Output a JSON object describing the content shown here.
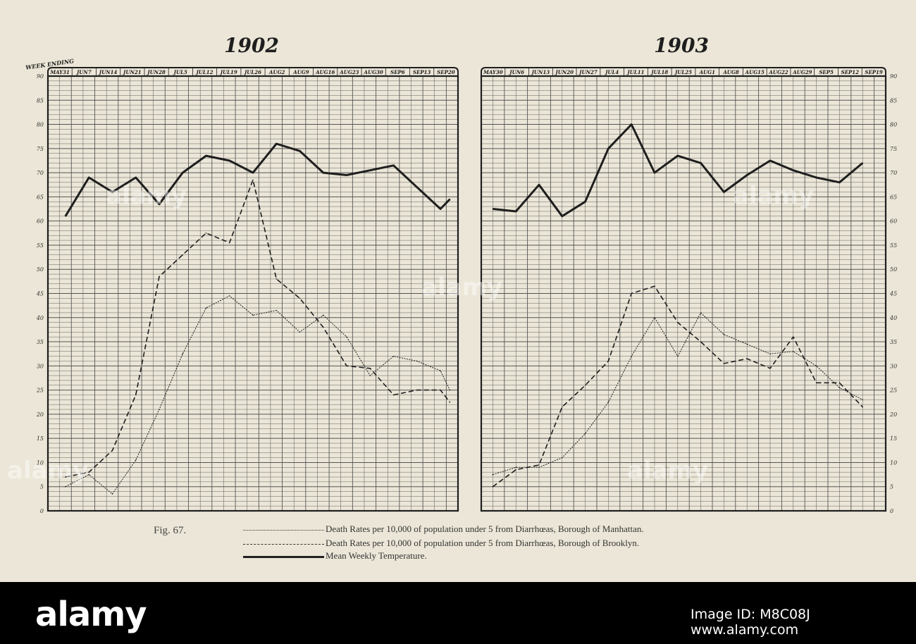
{
  "figure_label": "Fig. 67.",
  "week_label": "WEEK ENDING",
  "legend": [
    {
      "text": "Death Rates per 10,000 of population under 5 from Diarrhœas, Borough of Manhattan.",
      "style": "dotted"
    },
    {
      "text": "Death Rates per 10,000 of population under 5 from Diarrhœas, Borough of Brooklyn.",
      "style": "dashed"
    },
    {
      "text": "Mean Weekly Temperature.",
      "style": "solid"
    }
  ],
  "watermark": "alamy",
  "footer": {
    "brand": "alamy",
    "image_id": "Image ID: M8C08J",
    "url": "www.alamy.com"
  },
  "colors": {
    "paper": "#ebe6d7",
    "ink": "#1e1e1e",
    "grid": "#555555"
  },
  "chart_data": [
    {
      "type": "line",
      "title": "1902",
      "ylim": [
        0,
        90
      ],
      "yticks": [
        "0",
        "5",
        "10",
        "15",
        "20",
        "25",
        "30",
        "35",
        "40",
        "45",
        "50",
        "55",
        "60",
        "65",
        "70",
        "75",
        "80",
        "85",
        "90"
      ],
      "x_labels": [
        "MAY31",
        "JUN7",
        "JUN14",
        "JUN21",
        "JUN28",
        "JUL5",
        "JUL12",
        "JUL19",
        "JUL26",
        "AUG2",
        "AUG9",
        "AUG16",
        "AUG23",
        "AUG30",
        "SEP6",
        "SEP13",
        "SEP20"
      ],
      "series": [
        {
          "name": "Mean Weekly Temperature.",
          "style": "solid",
          "points": [
            [
              1.5,
              61
            ],
            [
              3.5,
              69
            ],
            [
              5.5,
              66
            ],
            [
              7.5,
              69
            ],
            [
              9.5,
              63.5
            ],
            [
              11.5,
              70
            ],
            [
              13.5,
              73.5
            ],
            [
              15.5,
              72.5
            ],
            [
              17.5,
              70
            ],
            [
              19.5,
              76
            ],
            [
              21.5,
              74.5
            ],
            [
              23.5,
              70
            ],
            [
              25.5,
              69.5
            ],
            [
              27.5,
              70.5
            ],
            [
              29.5,
              71.5
            ],
            [
              31.5,
              67
            ],
            [
              33.5,
              62.5
            ],
            [
              34.3,
              64.5
            ]
          ]
        },
        {
          "name": "Brooklyn",
          "style": "dashed",
          "points": [
            [
              1.5,
              7
            ],
            [
              3.5,
              8
            ],
            [
              5.5,
              12.5
            ],
            [
              7.5,
              24
            ],
            [
              9.5,
              48.5
            ],
            [
              11.5,
              53
            ],
            [
              13.5,
              57.5
            ],
            [
              15.5,
              55.5
            ],
            [
              17.5,
              68.5
            ],
            [
              19.5,
              48
            ],
            [
              21.5,
              44
            ],
            [
              23.5,
              38
            ],
            [
              25.5,
              30
            ],
            [
              27.5,
              29.5
            ],
            [
              29.5,
              24
            ],
            [
              31.5,
              25
            ],
            [
              33.5,
              25
            ],
            [
              34.3,
              22.5
            ]
          ]
        },
        {
          "name": "Manhattan",
          "style": "dotted",
          "points": [
            [
              1.5,
              5
            ],
            [
              3.5,
              7.5
            ],
            [
              5.5,
              3.5
            ],
            [
              7.5,
              10.5
            ],
            [
              9.5,
              21
            ],
            [
              11.5,
              32.5
            ],
            [
              13.5,
              42
            ],
            [
              15.5,
              44.5
            ],
            [
              17.5,
              40.5
            ],
            [
              19.5,
              41.5
            ],
            [
              21.5,
              37
            ],
            [
              23.5,
              40.5
            ],
            [
              25.5,
              36
            ],
            [
              27.5,
              28
            ],
            [
              29.5,
              32
            ],
            [
              31.5,
              31
            ],
            [
              33.5,
              29
            ],
            [
              34.3,
              25
            ]
          ]
        }
      ]
    },
    {
      "type": "line",
      "title": "1903",
      "ylim": [
        0,
        90
      ],
      "yticks": [
        "0",
        "5",
        "10",
        "15",
        "20",
        "25",
        "30",
        "35",
        "40",
        "45",
        "50",
        "55",
        "60",
        "65",
        "70",
        "75",
        "80",
        "85",
        "90"
      ],
      "x_labels": [
        "MAY30",
        "JUN6",
        "JUN13",
        "JUN20",
        "JUN27",
        "JUL4",
        "JUL11",
        "JUL18",
        "JUL25",
        "AUG1",
        "AUG8",
        "AUG15",
        "AUG22",
        "AUG29",
        "SEP5",
        "SEP12",
        "SEP19"
      ],
      "series": [
        {
          "name": "Mean Weekly Temperature.",
          "style": "solid",
          "points": [
            [
              1,
              62.5
            ],
            [
              3,
              62
            ],
            [
              5,
              67.5
            ],
            [
              7,
              61
            ],
            [
              9,
              64
            ],
            [
              11,
              75
            ],
            [
              13,
              80
            ],
            [
              15,
              70
            ],
            [
              17,
              73.5
            ],
            [
              19,
              72
            ],
            [
              21,
              66
            ],
            [
              23,
              69.5
            ],
            [
              25,
              72.5
            ],
            [
              27,
              70.5
            ],
            [
              29,
              69
            ],
            [
              31,
              68
            ],
            [
              33,
              72
            ]
          ]
        },
        {
          "name": "Brooklyn",
          "style": "dashed",
          "points": [
            [
              1,
              5
            ],
            [
              3,
              8.5
            ],
            [
              5,
              9.5
            ],
            [
              7,
              21.5
            ],
            [
              9,
              26
            ],
            [
              11,
              31
            ],
            [
              13,
              45
            ],
            [
              15,
              46.5
            ],
            [
              17,
              39
            ],
            [
              19,
              35
            ],
            [
              21,
              30.5
            ],
            [
              23,
              31.5
            ],
            [
              25,
              29.5
            ],
            [
              27,
              36
            ],
            [
              29,
              26.5
            ],
            [
              31,
              26.5
            ],
            [
              33,
              21.5
            ]
          ]
        },
        {
          "name": "Manhattan",
          "style": "dotted",
          "points": [
            [
              1,
              7.5
            ],
            [
              3,
              9
            ],
            [
              5,
              9
            ],
            [
              7,
              11
            ],
            [
              9,
              16
            ],
            [
              11,
              22.5
            ],
            [
              13,
              32
            ],
            [
              15,
              40
            ],
            [
              17,
              32
            ],
            [
              19,
              41
            ],
            [
              21,
              36.5
            ],
            [
              23,
              34.5
            ],
            [
              25,
              32.5
            ],
            [
              27,
              33
            ],
            [
              29,
              30
            ],
            [
              31,
              25.5
            ],
            [
              33,
              23
            ]
          ]
        }
      ]
    }
  ]
}
